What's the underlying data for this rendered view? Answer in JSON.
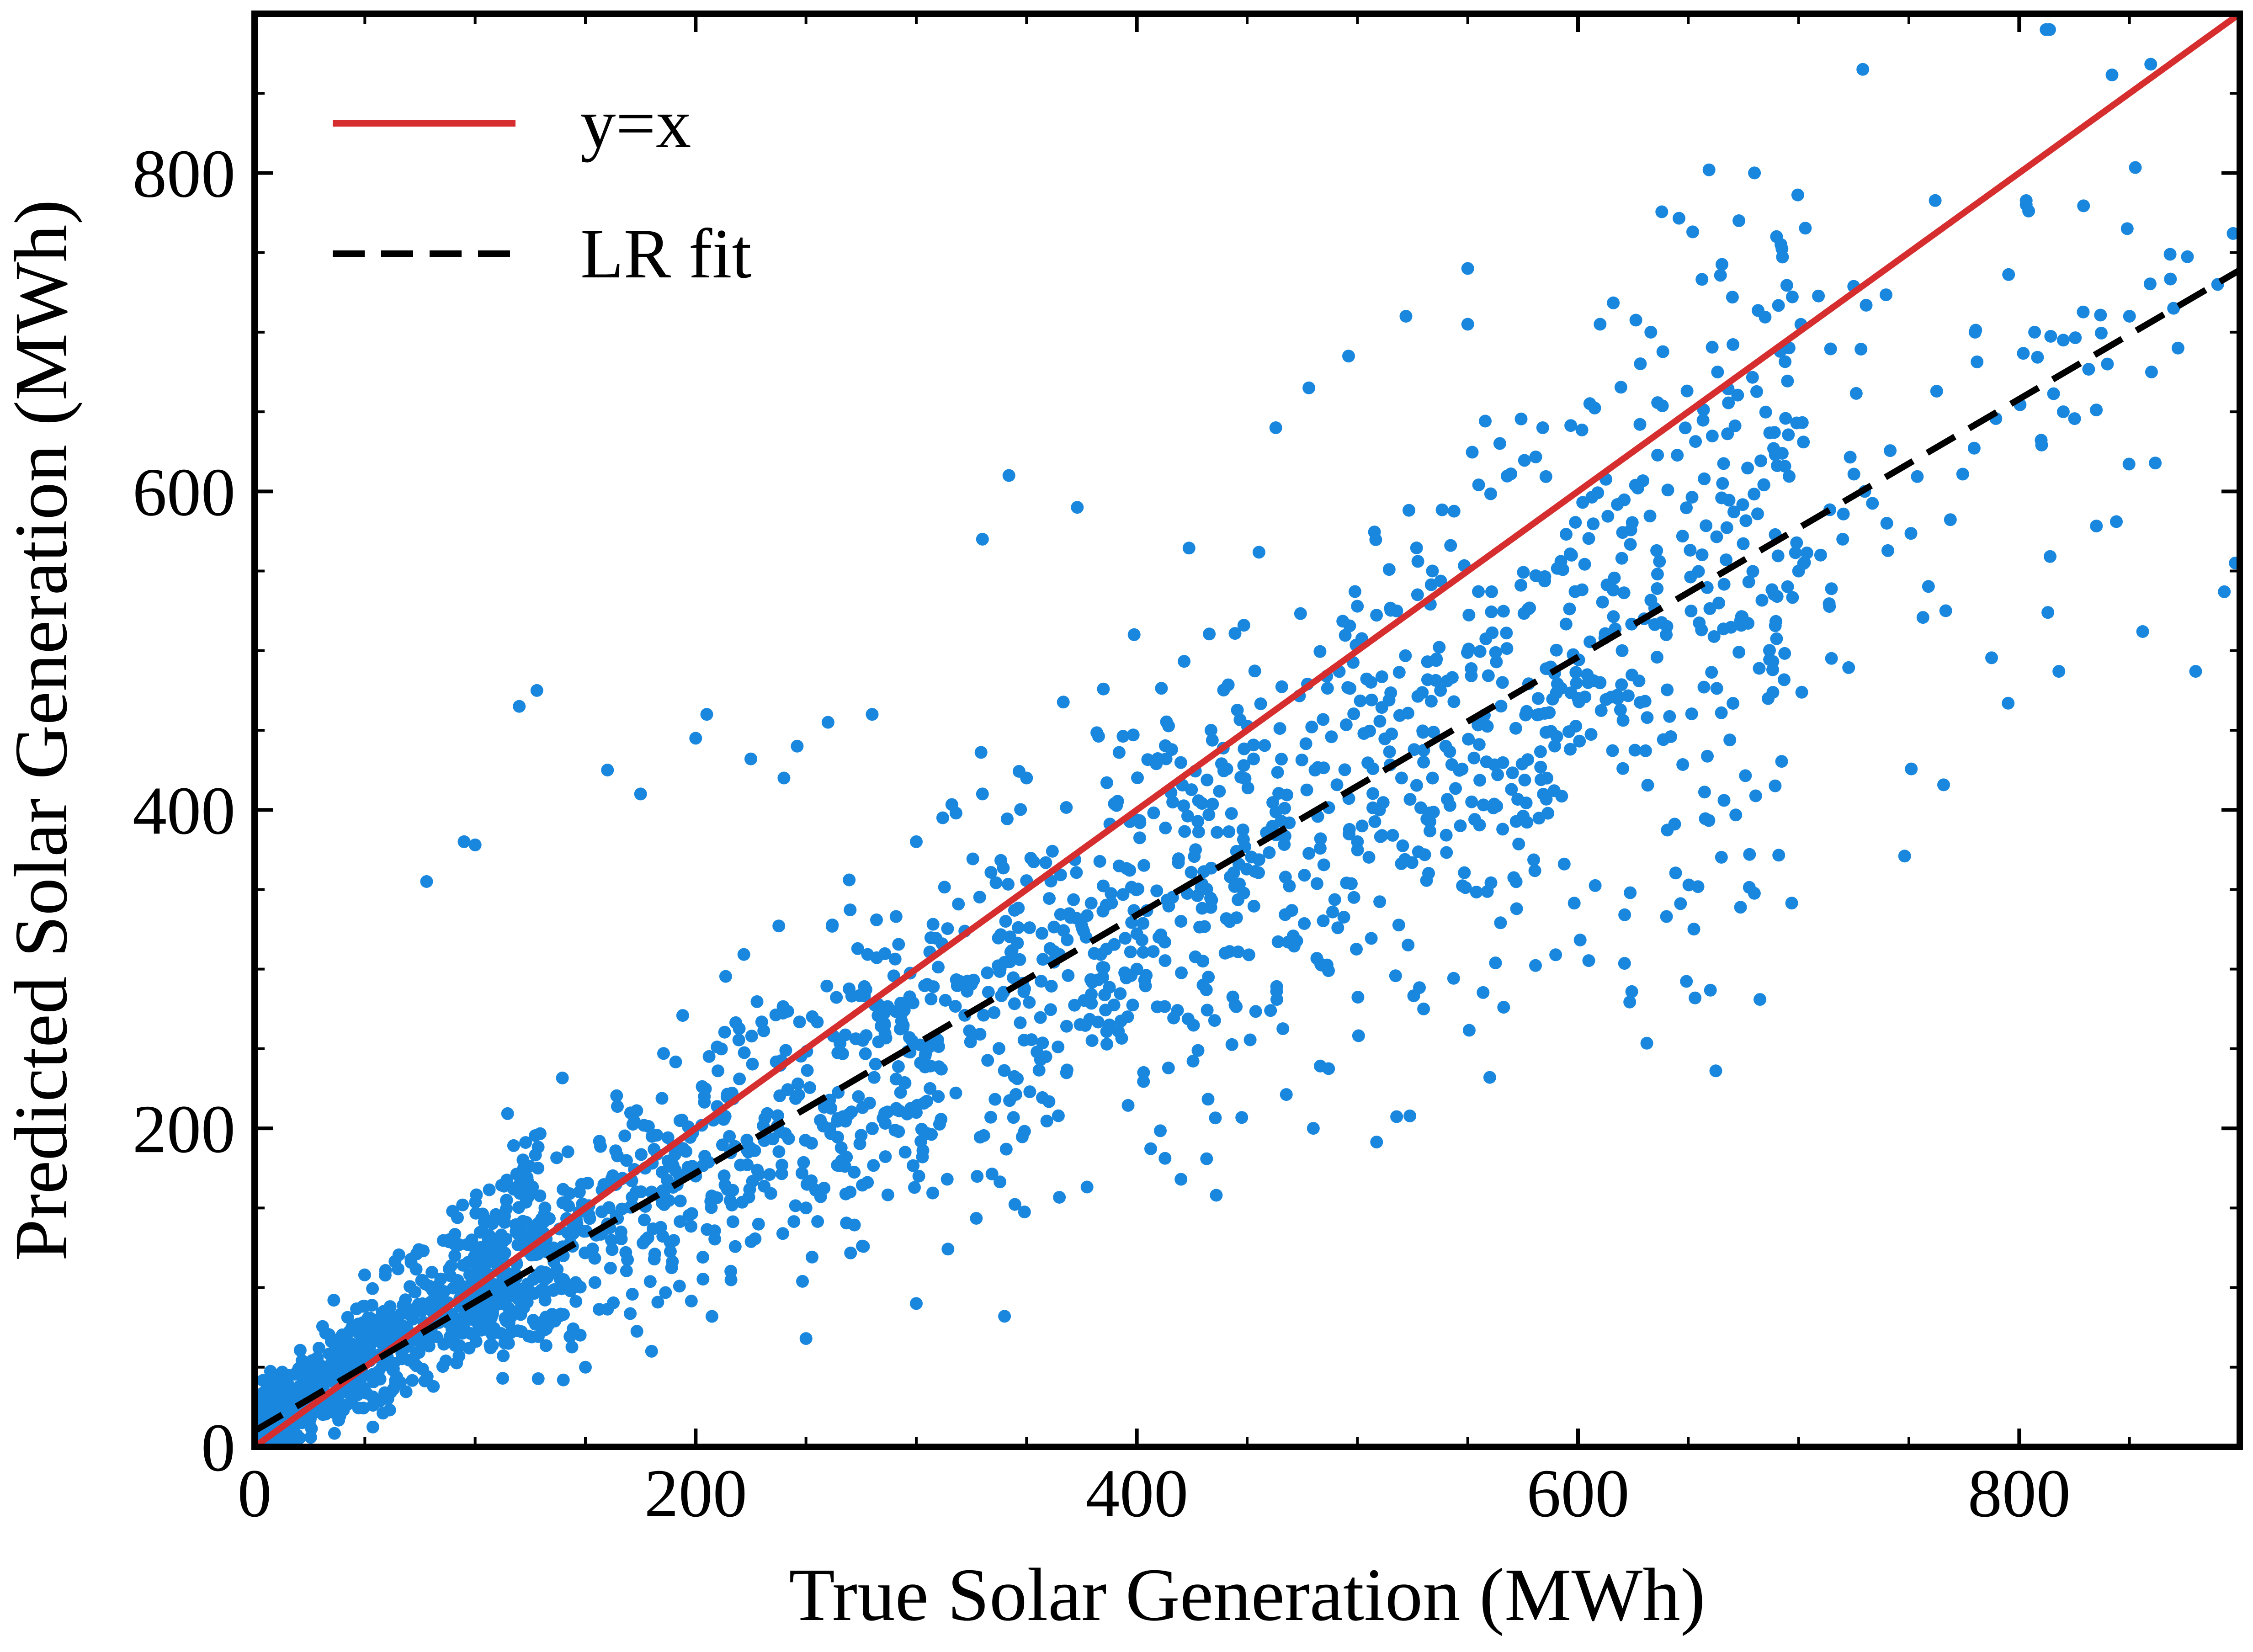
{
  "chart_data": {
    "type": "scatter",
    "title": "",
    "xlabel": "True Solar Generation (MWh)",
    "ylabel": "Predicted Solar Generation (MWh)",
    "xlim": [
      0,
      900
    ],
    "ylim": [
      0,
      900
    ],
    "xticks": [
      0,
      200,
      400,
      600,
      800
    ],
    "yticks": [
      0,
      200,
      400,
      600,
      800
    ],
    "xtick_labels": [
      "0",
      "200",
      "400",
      "600",
      "800"
    ],
    "ytick_labels": [
      "0",
      "200",
      "400",
      "600",
      "800"
    ],
    "grid": false,
    "legend_position": "top-left",
    "colors": {
      "points": "#1a87de",
      "identity_line": "#d62e2e",
      "fit_line": "#000000"
    },
    "series": [
      {
        "kind": "scatter",
        "n_points": 2400,
        "points": [
          [
            120,
            465
          ],
          [
            128,
            475
          ],
          [
            95,
            380
          ],
          [
            100,
            378
          ],
          [
            78,
            355
          ],
          [
            342,
            610
          ],
          [
            373,
            590
          ],
          [
            330,
            570
          ],
          [
            550,
            740
          ],
          [
            463,
            640
          ],
          [
            478,
            665
          ],
          [
            496,
            685
          ],
          [
            522,
            710
          ],
          [
            550,
            705
          ],
          [
            584,
            640
          ],
          [
            610,
            705
          ],
          [
            633,
            700
          ],
          [
            652,
            763
          ],
          [
            670,
            722
          ],
          [
            680,
            800
          ],
          [
            690,
            760
          ],
          [
            692,
            755
          ],
          [
            849,
            765
          ],
          [
            897,
            762
          ],
          [
            820,
            695
          ],
          [
            807,
            700
          ],
          [
            850,
            710
          ],
          [
            870,
            715
          ],
          [
            890,
            730
          ],
          [
            856,
            512
          ],
          [
            880,
            487
          ],
          [
            898,
            555
          ],
          [
            795,
            467
          ],
          [
            818,
            487
          ],
          [
            893,
            537
          ],
          [
            780,
            700
          ],
          [
            872,
            690
          ],
          [
            860,
            675
          ],
          [
            840,
            680
          ],
          [
            820,
            650
          ],
          [
            560,
            232
          ],
          [
            530,
            275
          ],
          [
            480,
            200
          ],
          [
            436,
            158
          ],
          [
            420,
            168
          ],
          [
            340,
            82
          ],
          [
            250,
            68
          ],
          [
            300,
            90
          ],
          [
            140,
            42
          ],
          [
            150,
            50
          ],
          [
            180,
            60
          ],
          [
            160,
            425
          ],
          [
            175,
            410
          ],
          [
            200,
            445
          ],
          [
            225,
            432
          ],
          [
            205,
            460
          ],
          [
            240,
            420
          ],
          [
            246,
            440
          ],
          [
            260,
            455
          ],
          [
            280,
            460
          ],
          [
            312,
            395
          ],
          [
            318,
            398
          ],
          [
            330,
            410
          ],
          [
            350,
            420
          ],
          [
            300,
            380
          ],
          [
            250,
            150
          ],
          [
            270,
            160
          ],
          [
            280,
            200
          ],
          [
            300,
            210
          ],
          [
            310,
            220
          ],
          [
            200,
            170
          ],
          [
            180,
            160
          ],
          [
            160,
            140
          ],
          [
            140,
            120
          ],
          [
            130,
            110
          ],
          [
            400,
            300
          ],
          [
            410,
            320
          ],
          [
            420,
            330
          ],
          [
            430,
            290
          ],
          [
            440,
            310
          ],
          [
            500,
            380
          ],
          [
            510,
            400
          ],
          [
            520,
            420
          ],
          [
            530,
            430
          ],
          [
            540,
            440
          ],
          [
            600,
            470
          ],
          [
            610,
            480
          ],
          [
            620,
            500
          ],
          [
            630,
            520
          ],
          [
            640,
            510
          ],
          [
            700,
            550
          ],
          [
            710,
            560
          ],
          [
            720,
            570
          ],
          [
            730,
            600
          ],
          [
            740,
            580
          ]
        ]
      },
      {
        "name": "y=x",
        "kind": "line",
        "slope": 1.0,
        "intercept": 0
      },
      {
        "name": "LR fit",
        "kind": "line",
        "slope": 0.81,
        "intercept": 10
      }
    ],
    "legend": [
      "y=x",
      "LR fit"
    ]
  }
}
